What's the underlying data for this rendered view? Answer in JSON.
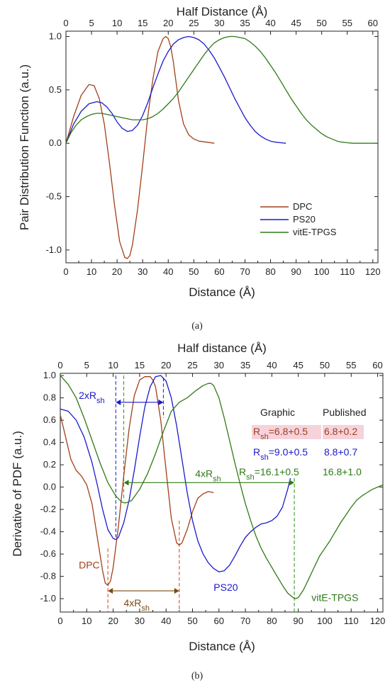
{
  "chart_data": [
    {
      "type": "line",
      "panel_label": "(a)",
      "xlabel": "Distance (Å)",
      "top_xlabel": "Half Distance (Å)",
      "ylabel": "Pair Distribution Function (a.u.)",
      "xlim": [
        0,
        122
      ],
      "ylim": [
        -1.12,
        1.05
      ],
      "xticks": [
        "0",
        "10",
        "20",
        "30",
        "40",
        "50",
        "60",
        "70",
        "80",
        "90",
        "100",
        "110",
        "120"
      ],
      "top_xticks": [
        "0",
        "5",
        "10",
        "15",
        "20",
        "25",
        "30",
        "35",
        "40",
        "45",
        "50",
        "55",
        "60"
      ],
      "yticks": [
        "1.0",
        "0.5",
        "0.0",
        "-0.5",
        "-1.0"
      ],
      "legend_position": "bottom-right",
      "series": [
        {
          "name": "DPC",
          "color": "#a0401a",
          "x": [
            0,
            3,
            6,
            9,
            11,
            13,
            15,
            17,
            19,
            21,
            23,
            24,
            25,
            26,
            28,
            30,
            32,
            34,
            36,
            38,
            39,
            40,
            41,
            42,
            43,
            44,
            46,
            48,
            50,
            52,
            55,
            58
          ],
          "y": [
            0,
            0.25,
            0.45,
            0.55,
            0.54,
            0.42,
            0.18,
            -0.18,
            -0.58,
            -0.92,
            -1.07,
            -1.08,
            -1.05,
            -0.95,
            -0.62,
            -0.2,
            0.25,
            0.6,
            0.86,
            0.98,
            1.0,
            0.98,
            0.9,
            0.76,
            0.58,
            0.4,
            0.18,
            0.08,
            0.04,
            0.02,
            0.01,
            0
          ]
        },
        {
          "name": "PS20",
          "color": "#1a1acc",
          "x": [
            0,
            3,
            6,
            9,
            12,
            14,
            16,
            18,
            20,
            22,
            24,
            26,
            28,
            30,
            32,
            34,
            36,
            38,
            40,
            42,
            44,
            46,
            48,
            50,
            52,
            54,
            56,
            58,
            60,
            62,
            64,
            66,
            68,
            70,
            72,
            74,
            76,
            78,
            80,
            82,
            84,
            86
          ],
          "y": [
            0,
            0.18,
            0.3,
            0.37,
            0.39,
            0.38,
            0.34,
            0.28,
            0.2,
            0.14,
            0.11,
            0.12,
            0.17,
            0.26,
            0.38,
            0.52,
            0.65,
            0.77,
            0.86,
            0.93,
            0.97,
            0.99,
            1.0,
            0.99,
            0.97,
            0.93,
            0.87,
            0.8,
            0.71,
            0.62,
            0.52,
            0.42,
            0.33,
            0.24,
            0.17,
            0.11,
            0.07,
            0.04,
            0.02,
            0.01,
            0.005,
            0
          ]
        },
        {
          "name": "vitE-TPGS",
          "color": "#2f7a16",
          "x": [
            0,
            2,
            4,
            6,
            8,
            10,
            12,
            14,
            16,
            18,
            20,
            22,
            24,
            26,
            28,
            30,
            32,
            34,
            36,
            38,
            40,
            42,
            44,
            46,
            48,
            50,
            52,
            54,
            56,
            58,
            60,
            62,
            64,
            66,
            68,
            70,
            72,
            74,
            76,
            78,
            80,
            82,
            84,
            86,
            88,
            90,
            92,
            94,
            96,
            98,
            100,
            102,
            104,
            106,
            108,
            110,
            112,
            114,
            116,
            118,
            120,
            122
          ],
          "y": [
            0,
            0.1,
            0.17,
            0.22,
            0.25,
            0.27,
            0.28,
            0.28,
            0.27,
            0.26,
            0.25,
            0.24,
            0.23,
            0.22,
            0.22,
            0.22,
            0.23,
            0.25,
            0.28,
            0.32,
            0.37,
            0.42,
            0.48,
            0.55,
            0.62,
            0.69,
            0.76,
            0.83,
            0.89,
            0.94,
            0.97,
            0.99,
            1.0,
            1.0,
            0.99,
            0.98,
            0.95,
            0.91,
            0.86,
            0.8,
            0.73,
            0.66,
            0.58,
            0.5,
            0.42,
            0.35,
            0.28,
            0.22,
            0.17,
            0.13,
            0.09,
            0.06,
            0.04,
            0.02,
            0.01,
            0.005,
            0,
            0,
            0,
            0,
            0,
            0
          ]
        }
      ],
      "caption": "(a)"
    },
    {
      "type": "line",
      "panel_label": "(b)",
      "xlabel": "Distance (Å)",
      "top_xlabel": "Half distance (Å)",
      "ylabel": "Derivative of PDF (a.u.)",
      "xlim": [
        0,
        122
      ],
      "ylim": [
        -1.12,
        1.02
      ],
      "xticks": [
        "0",
        "10",
        "20",
        "30",
        "40",
        "50",
        "60",
        "70",
        "80",
        "90",
        "100",
        "110",
        "120"
      ],
      "top_xticks": [
        "0",
        "5",
        "10",
        "15",
        "20",
        "25",
        "30",
        "35",
        "40",
        "45",
        "50",
        "55",
        "60"
      ],
      "yticks": [
        "1.0",
        "0.8",
        "0.6",
        "0.4",
        "0.2",
        "0.0",
        "-0.2",
        "-0.4",
        "-0.6",
        "-0.8",
        "-1.0"
      ],
      "series": [
        {
          "name": "DPC",
          "color": "#a0401a",
          "x": [
            0,
            2,
            4,
            6,
            8,
            10,
            12,
            14,
            16,
            17,
            18,
            19,
            20,
            22,
            24,
            26,
            28,
            30,
            32,
            34,
            35,
            36,
            38,
            40,
            42,
            44,
            45,
            46,
            48,
            50,
            52,
            54,
            56,
            58
          ],
          "y": [
            0.65,
            0.45,
            0.25,
            0.15,
            0.1,
            0.02,
            -0.15,
            -0.45,
            -0.75,
            -0.86,
            -0.88,
            -0.84,
            -0.72,
            -0.35,
            0.1,
            0.52,
            0.82,
            0.96,
            0.99,
            0.99,
            0.96,
            0.9,
            0.6,
            0.15,
            -0.28,
            -0.5,
            -0.52,
            -0.5,
            -0.38,
            -0.22,
            -0.1,
            -0.06,
            -0.04,
            -0.05
          ]
        },
        {
          "name": "PS20",
          "color": "#1a1acc",
          "x": [
            0,
            3,
            6,
            9,
            12,
            14,
            16,
            18,
            20,
            21,
            22,
            24,
            26,
            28,
            30,
            32,
            34,
            36,
            38,
            40,
            42,
            44,
            46,
            48,
            50,
            52,
            54,
            56,
            58,
            60,
            62,
            64,
            66,
            68,
            70,
            72,
            74,
            76,
            78,
            80,
            82,
            84,
            86,
            87
          ],
          "y": [
            0.7,
            0.68,
            0.6,
            0.45,
            0.22,
            0.02,
            -0.2,
            -0.38,
            -0.46,
            -0.47,
            -0.45,
            -0.32,
            -0.12,
            0.15,
            0.45,
            0.72,
            0.9,
            0.99,
            1.0,
            0.95,
            0.8,
            0.55,
            0.25,
            -0.05,
            -0.3,
            -0.48,
            -0.6,
            -0.68,
            -0.73,
            -0.76,
            -0.75,
            -0.7,
            -0.62,
            -0.53,
            -0.45,
            -0.4,
            -0.36,
            -0.33,
            -0.32,
            -0.3,
            -0.26,
            -0.18,
            -0.02,
            0.08
          ]
        },
        {
          "name": "vitE-TPGS",
          "color": "#2f7a16",
          "x": [
            0,
            3,
            6,
            9,
            12,
            15,
            18,
            21,
            23,
            24,
            25,
            27,
            30,
            33,
            36,
            39,
            42,
            45,
            48,
            51,
            54,
            56,
            57,
            58,
            60,
            62,
            64,
            66,
            68,
            70,
            72,
            74,
            76,
            78,
            80,
            82,
            84,
            86,
            88,
            89,
            90,
            92,
            94,
            96,
            98,
            100,
            102,
            104,
            106,
            108,
            110,
            112,
            114,
            116,
            118,
            120,
            122
          ],
          "y": [
            1.0,
            0.92,
            0.8,
            0.62,
            0.42,
            0.22,
            0.04,
            -0.08,
            -0.13,
            -0.14,
            -0.14,
            -0.12,
            -0.02,
            0.12,
            0.3,
            0.5,
            0.68,
            0.76,
            0.8,
            0.86,
            0.91,
            0.93,
            0.93,
            0.91,
            0.8,
            0.62,
            0.42,
            0.22,
            0.03,
            -0.15,
            -0.3,
            -0.44,
            -0.55,
            -0.64,
            -0.72,
            -0.8,
            -0.88,
            -0.95,
            -0.99,
            -1.0,
            -0.99,
            -0.92,
            -0.82,
            -0.72,
            -0.62,
            -0.55,
            -0.48,
            -0.4,
            -0.32,
            -0.25,
            -0.18,
            -0.12,
            -0.08,
            -0.05,
            -0.02,
            0,
            0.02
          ]
        }
      ],
      "curve_labels": [
        {
          "text": "DPC",
          "color": "#a0401a",
          "x": 7,
          "y": -0.73
        },
        {
          "text": "PS20",
          "color": "#1a1acc",
          "x": 58,
          "y": -0.93
        },
        {
          "text": "vitE-TPGS",
          "color": "#2f7a16",
          "x": 95,
          "y": -1.02
        }
      ],
      "table": {
        "header_graphic": "Graphic",
        "header_published": "Published",
        "rows": [
          {
            "label": "R",
            "sub": "sh",
            "graphic": "=6.8+0.5",
            "published": "6.8+0.2",
            "color": "#a0401a",
            "highlight": "#f6d2dc"
          },
          {
            "label": "R",
            "sub": "sh",
            "graphic": "=9.0+0.5",
            "published": "8.8+0.7",
            "color": "#1a1acc",
            "highlight": ""
          },
          {
            "label": "R",
            "sub": "sh",
            "graphic": "=16.1+0.5",
            "published": "16.8+1.0",
            "color": "#2f7a16",
            "highlight": ""
          }
        ]
      },
      "annotations": [
        {
          "text": "2xR",
          "sub": "sh",
          "color": "#1a1acc",
          "x1": 21,
          "x2": 39,
          "y": 0.76
        },
        {
          "text": "4xR",
          "sub": "sh",
          "color": "#2f7a16",
          "x1": 24,
          "x2": 88.5,
          "y": 0.04
        },
        {
          "text": "4xR",
          "sub": "sh",
          "color": "#7a4a10",
          "x1": 18,
          "x2": 45,
          "y": -0.93
        }
      ],
      "vlines": [
        {
          "x": 18,
          "y_top": -0.55,
          "y_bottom": -1.12,
          "color": "#e0502a"
        },
        {
          "x": 45,
          "y_top": -0.3,
          "y_bottom": -1.12,
          "color": "#e0502a"
        },
        {
          "x": 21,
          "y_top": 1.0,
          "y_bottom": -0.45,
          "color": "#2a2ad0"
        },
        {
          "x": 39,
          "y_top": 0.98,
          "y_bottom": 0.62,
          "color": "#2a2ad0"
        },
        {
          "x": 24,
          "y_top": 1.0,
          "y_bottom": -0.12,
          "color": "#3a9a2a"
        },
        {
          "x": 88.5,
          "y_top": 0.08,
          "y_bottom": -1.12,
          "color": "#3a9a2a"
        }
      ],
      "caption": "(b)"
    }
  ]
}
